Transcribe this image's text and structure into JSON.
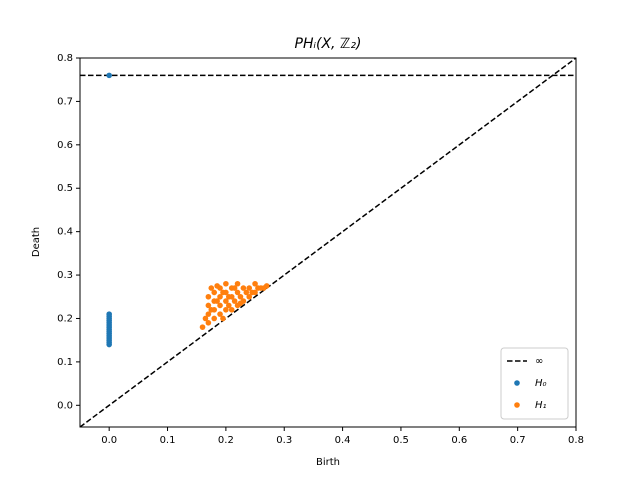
{
  "chart_data": {
    "type": "scatter",
    "title": "PHᵢ(X, ℤ₂)",
    "x_label": "Birth",
    "y_label": "Death",
    "xlim": [
      -0.05,
      0.8
    ],
    "ylim": [
      -0.05,
      0.8
    ],
    "xticks": [
      {
        "value": 0,
        "label": "0.0"
      },
      0.1,
      0.2,
      0.3,
      0.4,
      0.5,
      0.6,
      0.7,
      0.8
    ],
    "yticks": [
      {
        "value": 0,
        "label": "0.0"
      },
      0.1,
      0.2,
      0.3,
      0.4,
      0.5,
      0.6,
      0.7,
      0.8
    ],
    "legend": "lower right",
    "infinity": {
      "name": "∞",
      "value": 0.76,
      "color": "#000000"
    },
    "series": [
      {
        "name": "H₀",
        "color": "#1f77b4",
        "x": [
          0,
          0,
          0,
          0,
          0,
          0,
          0,
          0,
          0,
          0,
          0,
          0,
          0,
          0,
          0,
          0
        ],
        "y": [
          0.14,
          0.145,
          0.15,
          0.155,
          0.16,
          0.165,
          0.17,
          0.175,
          0.18,
          0.185,
          0.19,
          0.195,
          0.2,
          0.205,
          0.21,
          0.76
        ]
      },
      {
        "name": "H₁",
        "color": "#ff7f0e",
        "x": [
          0.16,
          0.17,
          0.17,
          0.17,
          0.17,
          0.175,
          0.18,
          0.18,
          0.18,
          0.18,
          0.185,
          0.19,
          0.19,
          0.19,
          0.19,
          0.195,
          0.2,
          0.2,
          0.2,
          0.2,
          0.205,
          0.21,
          0.21,
          0.21,
          0.215,
          0.22,
          0.22,
          0.22,
          0.225,
          0.23,
          0.23,
          0.235,
          0.24,
          0.24,
          0.245,
          0.25,
          0.25,
          0.255,
          0.26,
          0.265,
          0.27,
          0.165,
          0.175,
          0.185,
          0.195,
          0.205,
          0.215,
          0.225
        ],
        "y": [
          0.18,
          0.19,
          0.21,
          0.23,
          0.25,
          0.27,
          0.2,
          0.22,
          0.24,
          0.26,
          0.275,
          0.21,
          0.23,
          0.25,
          0.27,
          0.2,
          0.22,
          0.24,
          0.26,
          0.28,
          0.23,
          0.22,
          0.25,
          0.27,
          0.24,
          0.23,
          0.26,
          0.28,
          0.25,
          0.24,
          0.27,
          0.26,
          0.25,
          0.27,
          0.26,
          0.26,
          0.28,
          0.27,
          0.27,
          0.27,
          0.275,
          0.2,
          0.22,
          0.24,
          0.26,
          0.25,
          0.27,
          0.235
        ]
      }
    ]
  }
}
